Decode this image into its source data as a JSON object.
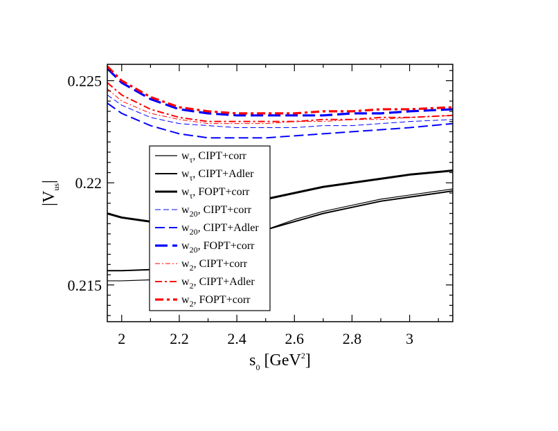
{
  "chart_data": {
    "type": "line",
    "title": "",
    "xlabel": {
      "main": "s",
      "sub": "0",
      "rest": " [GeV",
      "sup": "2",
      "end": "]"
    },
    "ylabel": {
      "main": "|V",
      "sub": "us",
      "end": "|"
    },
    "xlim": [
      1.95,
      3.15
    ],
    "ylim": [
      0.2132,
      0.2258
    ],
    "xticks": [
      2,
      2.2,
      2.4,
      2.6,
      2.8,
      3
    ],
    "xtick_labels": [
      "2",
      "2.2",
      "2.4",
      "2.6",
      "2.8",
      "3"
    ],
    "yticks": [
      0.215,
      0.22,
      0.225
    ],
    "ytick_labels": [
      "0.215",
      "0.22",
      "0.225"
    ],
    "legend_position": "left-middle",
    "series": [
      {
        "name": "CIPT+corr",
        "weight": "w",
        "weight_sub": "τ",
        "color": "#000000",
        "width": 1.2,
        "dash": "",
        "x": [
          1.95,
          2.0,
          2.1,
          2.2,
          2.3,
          2.4,
          2.5,
          2.6,
          2.7,
          2.8,
          2.9,
          3.0,
          3.15
        ],
        "y": [
          0.2152,
          0.2152,
          0.21525,
          0.2157,
          0.2164,
          0.2171,
          0.2177,
          0.2182,
          0.2186,
          0.2189,
          0.2192,
          0.2194,
          0.2197
        ]
      },
      {
        "name": "CIPT+Adler",
        "weight": "w",
        "weight_sub": "τ",
        "color": "#000000",
        "width": 2.0,
        "dash": "",
        "x": [
          1.95,
          2.0,
          2.1,
          2.2,
          2.3,
          2.4,
          2.5,
          2.6,
          2.7,
          2.8,
          2.9,
          3.0,
          3.15
        ],
        "y": [
          0.2157,
          0.2157,
          0.21575,
          0.2161,
          0.2166,
          0.2172,
          0.2177,
          0.2181,
          0.2185,
          0.2188,
          0.2191,
          0.2193,
          0.2196
        ]
      },
      {
        "name": "FOPT+corr",
        "weight": "w",
        "weight_sub": "τ",
        "color": "#000000",
        "width": 3.0,
        "dash": "",
        "x": [
          1.95,
          2.0,
          2.1,
          2.2,
          2.3,
          2.4,
          2.5,
          2.6,
          2.7,
          2.8,
          2.9,
          3.0,
          3.15
        ],
        "y": [
          0.2185,
          0.2183,
          0.2181,
          0.2182,
          0.2185,
          0.2189,
          0.2192,
          0.2195,
          0.2198,
          0.22,
          0.2202,
          0.2204,
          0.2206
        ]
      },
      {
        "name": "CIPT+corr",
        "weight": "w",
        "weight_sub": "20",
        "color": "#0000ff",
        "width": 1.0,
        "dash": "8 4",
        "x": [
          1.95,
          2.0,
          2.1,
          2.2,
          2.3,
          2.4,
          2.5,
          2.6,
          2.7,
          2.8,
          2.9,
          3.0,
          3.15
        ],
        "y": [
          0.2243,
          0.2238,
          0.2232,
          0.2229,
          0.2228,
          0.2227,
          0.2227,
          0.2227,
          0.2228,
          0.2228,
          0.2229,
          0.223,
          0.2231
        ]
      },
      {
        "name": "CIPT+Adler",
        "weight": "w",
        "weight_sub": "20",
        "color": "#0000ff",
        "width": 2.0,
        "dash": "14 6",
        "x": [
          1.95,
          2.0,
          2.1,
          2.2,
          2.3,
          2.4,
          2.5,
          2.6,
          2.7,
          2.8,
          2.9,
          3.0,
          3.15
        ],
        "y": [
          0.2239,
          0.2234,
          0.2228,
          0.2224,
          0.2222,
          0.2222,
          0.2222,
          0.2223,
          0.2224,
          0.2225,
          0.2226,
          0.2227,
          0.2229
        ]
      },
      {
        "name": "FOPT+corr",
        "weight": "w",
        "weight_sub": "20",
        "color": "#0000ff",
        "width": 3.2,
        "dash": "18 7",
        "x": [
          1.95,
          2.0,
          2.1,
          2.2,
          2.3,
          2.4,
          2.5,
          2.6,
          2.7,
          2.8,
          2.9,
          3.0,
          3.15
        ],
        "y": [
          0.2256,
          0.2249,
          0.2241,
          0.2236,
          0.2234,
          0.2233,
          0.2233,
          0.2233,
          0.2233,
          0.2234,
          0.2234,
          0.2235,
          0.2236
        ]
      },
      {
        "name": "CIPT+corr",
        "weight": "w",
        "weight_sub": "2",
        "color": "#ff0000",
        "width": 1.0,
        "dash": "7 3 2 3",
        "x": [
          1.95,
          2.0,
          2.1,
          2.2,
          2.3,
          2.4,
          2.5,
          2.6,
          2.7,
          2.8,
          2.9,
          3.0,
          3.15
        ],
        "y": [
          0.2246,
          0.224,
          0.2234,
          0.2231,
          0.2229,
          0.2229,
          0.2229,
          0.223,
          0.223,
          0.2231,
          0.2231,
          0.2232,
          0.2233
        ]
      },
      {
        "name": "CIPT+Adler",
        "weight": "w",
        "weight_sub": "2",
        "color": "#ff0000",
        "width": 2.0,
        "dash": "10 4 3 4",
        "x": [
          1.95,
          2.0,
          2.1,
          2.2,
          2.3,
          2.4,
          2.5,
          2.6,
          2.7,
          2.8,
          2.9,
          3.0,
          3.15
        ],
        "y": [
          0.2249,
          0.2243,
          0.2236,
          0.2232,
          0.223,
          0.223,
          0.223,
          0.223,
          0.2231,
          0.2231,
          0.2232,
          0.2232,
          0.2233
        ]
      },
      {
        "name": "FOPT+corr",
        "weight": "w",
        "weight_sub": "2",
        "color": "#ff0000",
        "width": 3.2,
        "dash": "12 5 4 5",
        "x": [
          1.95,
          2.0,
          2.1,
          2.2,
          2.3,
          2.4,
          2.5,
          2.6,
          2.7,
          2.8,
          2.9,
          3.0,
          3.15
        ],
        "y": [
          0.2257,
          0.225,
          0.2242,
          0.2237,
          0.2235,
          0.2234,
          0.2234,
          0.2234,
          0.2235,
          0.2235,
          0.2236,
          0.2236,
          0.2237
        ]
      }
    ]
  }
}
